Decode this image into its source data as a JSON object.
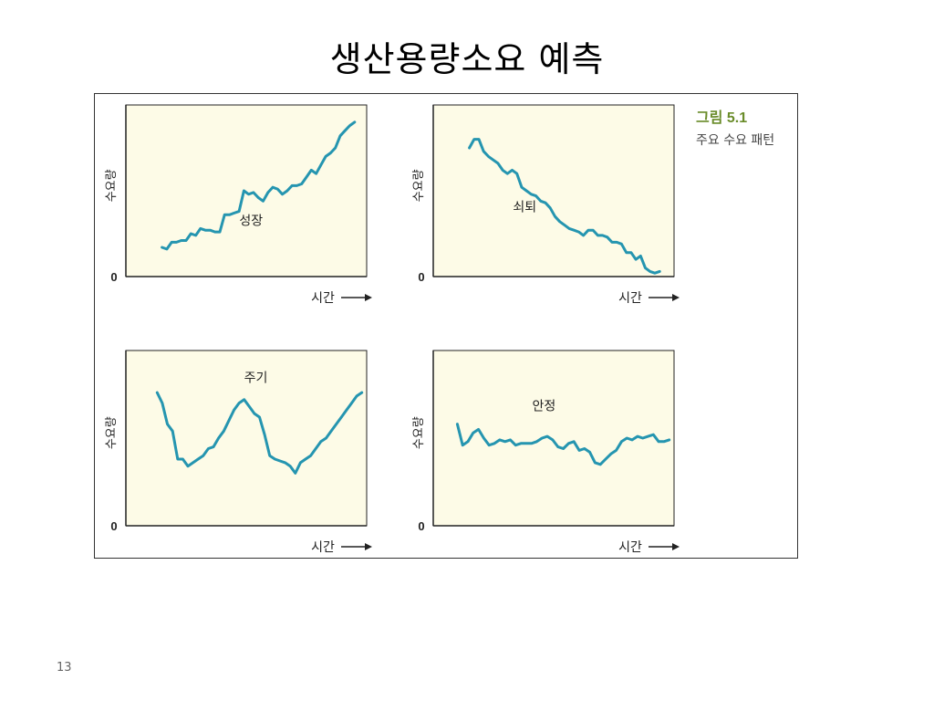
{
  "title": "생산용량소요 예측",
  "figure": {
    "caption_number": "그림 5.1",
    "caption_text": "주요 수요 패턴"
  },
  "page_number": "13",
  "colors": {
    "panel_fill": "#fdfbe7",
    "line": "#2595b0",
    "axis": "#222222",
    "caption_green": "#6a8c2a"
  },
  "chart_data": [
    {
      "type": "line",
      "title": "성장",
      "ylabel": "수요량",
      "xlabel": "시간",
      "y_tick": "0",
      "x": [
        0,
        1,
        2,
        3,
        4,
        5,
        6,
        7,
        8,
        9,
        10,
        11,
        12,
        13,
        14,
        15,
        16,
        17,
        18,
        19,
        20,
        21,
        22,
        23,
        24,
        25,
        26,
        27,
        28,
        29,
        30,
        31,
        32,
        33,
        34,
        35,
        36,
        37,
        38,
        39,
        40
      ],
      "values": [
        17,
        16,
        20,
        20,
        21,
        21,
        25,
        24,
        28,
        27,
        27,
        26,
        26,
        36,
        36,
        37,
        38,
        50,
        48,
        49,
        46,
        44,
        49,
        52,
        51,
        48,
        50,
        53,
        53,
        54,
        58,
        62,
        60,
        65,
        70,
        72,
        75,
        82,
        85,
        88,
        90
      ],
      "ylim": [
        0,
        100
      ]
    },
    {
      "type": "line",
      "title": "쇠퇴",
      "ylabel": "수요량",
      "xlabel": "시간",
      "y_tick": "0",
      "x": [
        0,
        1,
        2,
        3,
        4,
        5,
        6,
        7,
        8,
        9,
        10,
        11,
        12,
        13,
        14,
        15,
        16,
        17,
        18,
        19,
        20,
        21,
        22,
        23,
        24,
        25,
        26,
        27,
        28,
        29,
        30,
        31,
        32,
        33,
        34,
        35,
        36,
        37,
        38,
        39,
        40
      ],
      "values": [
        75,
        80,
        80,
        73,
        70,
        68,
        66,
        62,
        60,
        62,
        60,
        52,
        50,
        48,
        47,
        44,
        43,
        40,
        35,
        32,
        30,
        28,
        27,
        26,
        24,
        27,
        27,
        24,
        24,
        23,
        20,
        20,
        19,
        14,
        14,
        10,
        12,
        5,
        3,
        2,
        3
      ],
      "ylim": [
        0,
        100
      ]
    },
    {
      "type": "line",
      "title": "주기",
      "ylabel": "수요량",
      "xlabel": "시간",
      "y_tick": "0",
      "x": [
        0,
        1,
        2,
        3,
        4,
        5,
        6,
        7,
        8,
        9,
        10,
        11,
        12,
        13,
        14,
        15,
        16,
        17,
        18,
        19,
        20,
        21,
        22,
        23,
        24,
        25,
        26,
        27,
        28,
        29,
        30,
        31,
        32,
        33,
        34,
        35,
        36,
        37,
        38,
        39,
        40
      ],
      "values": [
        76,
        70,
        58,
        54,
        38,
        38,
        34,
        36,
        38,
        40,
        44,
        45,
        50,
        54,
        60,
        66,
        70,
        72,
        68,
        64,
        62,
        52,
        40,
        38,
        37,
        36,
        34,
        30,
        36,
        38,
        40,
        44,
        48,
        50,
        54,
        58,
        62,
        66,
        70,
        74,
        76
      ],
      "ylim": [
        0,
        100
      ]
    },
    {
      "type": "line",
      "title": "안정",
      "ylabel": "수요량",
      "xlabel": "시간",
      "y_tick": "0",
      "x": [
        0,
        1,
        2,
        3,
        4,
        5,
        6,
        7,
        8,
        9,
        10,
        11,
        12,
        13,
        14,
        15,
        16,
        17,
        18,
        19,
        20,
        21,
        22,
        23,
        24,
        25,
        26,
        27,
        28,
        29,
        30,
        31,
        32,
        33,
        34,
        35,
        36,
        37,
        38,
        39,
        40
      ],
      "values": [
        58,
        46,
        48,
        53,
        55,
        50,
        46,
        47,
        49,
        48,
        49,
        46,
        47,
        47,
        47,
        48,
        50,
        51,
        49,
        45,
        44,
        47,
        48,
        43,
        44,
        42,
        36,
        35,
        38,
        41,
        43,
        48,
        50,
        49,
        51,
        50,
        51,
        52,
        48,
        48,
        49
      ],
      "ylim": [
        0,
        100
      ]
    }
  ]
}
